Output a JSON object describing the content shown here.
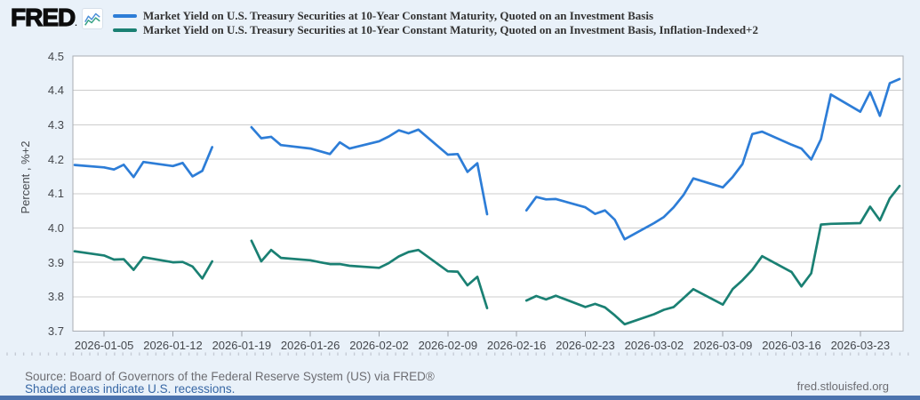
{
  "header": {
    "brand": "FRED",
    "brand_mark": ".",
    "legend": [
      {
        "label": "Market Yield on U.S. Treasury Securities at 10-Year Constant Maturity, Quoted on an Investment Basis",
        "color": "#2d7dd7"
      },
      {
        "label": "Market Yield on U.S. Treasury Securities at 10-Year Constant Maturity, Quoted on an Investment Basis, Inflation-Indexed+2",
        "color": "#1a8073"
      }
    ]
  },
  "chart_data": {
    "type": "line",
    "title": "",
    "ylabel": "Percent , %+2",
    "xlabel": "",
    "ylim": [
      3.7,
      4.5
    ],
    "grid": true,
    "legend_position": "top",
    "date_start": "2026-01-02",
    "date_end": "2026-03-27",
    "y_ticks": [
      "4.5",
      "4.4",
      "4.3",
      "4.2",
      "4.1",
      "4.0",
      "3.9",
      "3.8",
      "3.7"
    ],
    "x_tick_labels": [
      "2026-01-05",
      "2026-01-12",
      "2026-01-19",
      "2026-01-26",
      "2026-02-02",
      "2026-02-09",
      "2026-02-16",
      "2026-02-23",
      "2026-03-02",
      "2026-03-09",
      "2026-03-16",
      "2026-03-23"
    ],
    "series": [
      {
        "name": "Market Yield on U.S. Treasury Securities at 10-Year Constant Maturity, Quoted on an Investment Basis",
        "color": "#2d7dd7",
        "segments": [
          [
            [
              "2026-01-02",
              4.183
            ],
            [
              "2026-01-05",
              4.176
            ],
            [
              "2026-01-06",
              4.17
            ],
            [
              "2026-01-07",
              4.184
            ],
            [
              "2026-01-08",
              4.148
            ],
            [
              "2026-01-09",
              4.192
            ],
            [
              "2026-01-12",
              4.18
            ],
            [
              "2026-01-13",
              4.189
            ],
            [
              "2026-01-14",
              4.15
            ],
            [
              "2026-01-15",
              4.166
            ],
            [
              "2026-01-16",
              4.235
            ]
          ],
          [
            [
              "2026-01-20",
              4.293
            ],
            [
              "2026-01-21",
              4.261
            ],
            [
              "2026-01-22",
              4.265
            ],
            [
              "2026-01-23",
              4.241
            ],
            [
              "2026-01-26",
              4.231
            ],
            [
              "2026-01-27",
              4.223
            ],
            [
              "2026-01-28",
              4.215
            ],
            [
              "2026-01-29",
              4.249
            ],
            [
              "2026-01-30",
              4.231
            ],
            [
              "2026-02-02",
              4.252
            ],
            [
              "2026-02-03",
              4.266
            ],
            [
              "2026-02-04",
              4.284
            ],
            [
              "2026-02-05",
              4.275
            ],
            [
              "2026-02-06",
              4.286
            ],
            [
              "2026-02-09",
              4.213
            ],
            [
              "2026-02-10",
              4.215
            ],
            [
              "2026-02-11",
              4.163
            ],
            [
              "2026-02-12",
              4.188
            ],
            [
              "2026-02-13",
              4.04
            ]
          ],
          [
            [
              "2026-02-17",
              4.051
            ],
            [
              "2026-02-18",
              4.09
            ],
            [
              "2026-02-19",
              4.083
            ],
            [
              "2026-02-20",
              4.084
            ],
            [
              "2026-02-23",
              4.06
            ],
            [
              "2026-02-24",
              4.041
            ],
            [
              "2026-02-25",
              4.051
            ],
            [
              "2026-02-26",
              4.024
            ],
            [
              "2026-02-27",
              3.967
            ],
            [
              "2026-03-02",
              4.014
            ],
            [
              "2026-03-03",
              4.032
            ],
            [
              "2026-03-04",
              4.06
            ],
            [
              "2026-03-05",
              4.096
            ],
            [
              "2026-03-06",
              4.144
            ],
            [
              "2026-03-09",
              4.118
            ],
            [
              "2026-03-10",
              4.148
            ],
            [
              "2026-03-11",
              4.186
            ],
            [
              "2026-03-12",
              4.273
            ],
            [
              "2026-03-13",
              4.28
            ],
            [
              "2026-03-16",
              4.242
            ],
            [
              "2026-03-17",
              4.231
            ],
            [
              "2026-03-18",
              4.199
            ],
            [
              "2026-03-19",
              4.258
            ],
            [
              "2026-03-20",
              4.388
            ],
            [
              "2026-03-23",
              4.338
            ],
            [
              "2026-03-24",
              4.395
            ],
            [
              "2026-03-25",
              4.326
            ],
            [
              "2026-03-26",
              4.421
            ],
            [
              "2026-03-27",
              4.433
            ]
          ]
        ]
      },
      {
        "name": "Market Yield on U.S. Treasury Securities at 10-Year Constant Maturity, Quoted on an Investment Basis, Inflation-Indexed+2",
        "color": "#1a8073",
        "segments": [
          [
            [
              "2026-01-02",
              3.932
            ],
            [
              "2026-01-05",
              3.92
            ],
            [
              "2026-01-06",
              3.908
            ],
            [
              "2026-01-07",
              3.909
            ],
            [
              "2026-01-08",
              3.878
            ],
            [
              "2026-01-09",
              3.915
            ],
            [
              "2026-01-12",
              3.9
            ],
            [
              "2026-01-13",
              3.901
            ],
            [
              "2026-01-14",
              3.888
            ],
            [
              "2026-01-15",
              3.853
            ],
            [
              "2026-01-16",
              3.903
            ]
          ],
          [
            [
              "2026-01-20",
              3.963
            ],
            [
              "2026-01-21",
              3.903
            ],
            [
              "2026-01-22",
              3.936
            ],
            [
              "2026-01-23",
              3.913
            ],
            [
              "2026-01-26",
              3.906
            ],
            [
              "2026-01-27",
              3.9
            ],
            [
              "2026-01-28",
              3.895
            ],
            [
              "2026-01-29",
              3.895
            ],
            [
              "2026-01-30",
              3.89
            ],
            [
              "2026-02-02",
              3.884
            ],
            [
              "2026-02-03",
              3.898
            ],
            [
              "2026-02-04",
              3.917
            ],
            [
              "2026-02-05",
              3.93
            ],
            [
              "2026-02-06",
              3.936
            ],
            [
              "2026-02-09",
              3.874
            ],
            [
              "2026-02-10",
              3.873
            ],
            [
              "2026-02-11",
              3.833
            ],
            [
              "2026-02-12",
              3.858
            ],
            [
              "2026-02-13",
              3.767
            ]
          ],
          [
            [
              "2026-02-17",
              3.789
            ],
            [
              "2026-02-18",
              3.802
            ],
            [
              "2026-02-19",
              3.792
            ],
            [
              "2026-02-20",
              3.803
            ],
            [
              "2026-02-23",
              3.77
            ],
            [
              "2026-02-24",
              3.779
            ],
            [
              "2026-02-25",
              3.769
            ],
            [
              "2026-02-26",
              3.746
            ],
            [
              "2026-02-27",
              3.72
            ],
            [
              "2026-03-02",
              3.749
            ],
            [
              "2026-03-03",
              3.762
            ],
            [
              "2026-03-04",
              3.77
            ],
            [
              "2026-03-05",
              3.796
            ],
            [
              "2026-03-06",
              3.822
            ],
            [
              "2026-03-09",
              3.777
            ],
            [
              "2026-03-10",
              3.822
            ],
            [
              "2026-03-11",
              3.848
            ],
            [
              "2026-03-12",
              3.878
            ],
            [
              "2026-03-13",
              3.918
            ],
            [
              "2026-03-16",
              3.872
            ],
            [
              "2026-03-17",
              3.83
            ],
            [
              "2026-03-18",
              3.868
            ],
            [
              "2026-03-19",
              4.01
            ],
            [
              "2026-03-20",
              4.012
            ],
            [
              "2026-03-23",
              4.014
            ],
            [
              "2026-03-24",
              4.062
            ],
            [
              "2026-03-25",
              4.022
            ],
            [
              "2026-03-26",
              4.086
            ],
            [
              "2026-03-27",
              4.122
            ]
          ]
        ]
      }
    ]
  },
  "footer": {
    "source": "Source: Board of Governors of the Federal Reserve System (US) via FRED®",
    "recession_note": "Shaded areas indicate U.S. recessions.",
    "site": "fred.stlouisfed.org"
  },
  "colors": {
    "background": "#e9f1f9",
    "plot_background": "#ffffff",
    "gridline": "#cccccc",
    "plot_border": "#a9adb3",
    "series_blue": "#2d7dd7",
    "series_teal": "#1a8073",
    "bottom_bar": "#4c73ae",
    "link": "#3767a5",
    "muted_text": "#6d6d72",
    "tick_text": "#44474c"
  }
}
